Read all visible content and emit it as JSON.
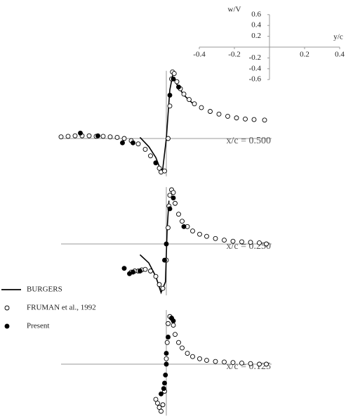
{
  "chart_data": [
    {
      "type": "axes",
      "x_label": "y/c",
      "y_label": "w/V",
      "xlim": [
        -0.4,
        0.4
      ],
      "ylim": [
        -0.6,
        0.6
      ],
      "xticks": [
        -0.4,
        -0.2,
        0.2,
        0.4
      ],
      "yticks": [
        0.6,
        0.4,
        0.2,
        -0.2,
        -0.4,
        -0.6
      ]
    },
    {
      "type": "scatter",
      "title": "x/c = 0.500",
      "xlim": [
        -0.6,
        0.6
      ],
      "ylim": [
        -0.7,
        1.25
      ],
      "series": [
        {
          "name": "BURGERS",
          "style": "line",
          "color": "#000000",
          "x": [
            -0.15,
            -0.1,
            -0.06,
            -0.03,
            -0.02,
            0,
            0.02,
            0.035,
            0.06,
            0.1,
            0.15
          ],
          "values": [
            0.02,
            -0.15,
            -0.35,
            -0.6,
            -0.55,
            0,
            0.9,
            1.15,
            1.0,
            0.8,
            0.65
          ]
        },
        {
          "name": "FRUMAN et al., 1992",
          "style": "open",
          "color": "#000000",
          "x": [
            -0.6,
            -0.56,
            -0.52,
            -0.48,
            -0.44,
            -0.4,
            -0.36,
            -0.32,
            -0.28,
            -0.24,
            -0.2,
            -0.16,
            -0.12,
            -0.09,
            -0.06,
            -0.04,
            -0.03,
            -0.01,
            0.01,
            0.02,
            0.03,
            0.035,
            0.045,
            0.06,
            0.08,
            0.1,
            0.13,
            0.16,
            0.2,
            0.25,
            0.3,
            0.35,
            0.4,
            0.45,
            0.5,
            0.56
          ],
          "values": [
            0.03,
            0.04,
            0.05,
            0.05,
            0.05,
            0.04,
            0.04,
            0.03,
            0.02,
            0.0,
            -0.04,
            -0.1,
            -0.2,
            -0.32,
            -0.45,
            -0.55,
            -0.62,
            -0.6,
            0.0,
            0.6,
            1.1,
            1.23,
            1.2,
            1.05,
            0.92,
            0.82,
            0.72,
            0.64,
            0.57,
            0.5,
            0.45,
            0.41,
            0.38,
            0.36,
            0.35,
            0.34
          ]
        },
        {
          "name": "Present",
          "style": "filled",
          "color": "#000000",
          "x": [
            -0.49,
            -0.39,
            -0.25,
            -0.19,
            -0.06,
            0.02,
            0.04,
            0.07
          ],
          "values": [
            0.1,
            0.05,
            -0.08,
            -0.08,
            -0.45,
            0.8,
            1.1,
            0.95
          ]
        }
      ]
    },
    {
      "type": "scatter",
      "title": "x/c = 0.250",
      "xlim": [
        -0.6,
        0.6
      ],
      "ylim": [
        -0.95,
        1.05
      ],
      "series": [
        {
          "name": "BURGERS",
          "style": "line",
          "color": "#000000",
          "x": [
            -0.15,
            -0.1,
            -0.06,
            -0.03,
            -0.005,
            0.005,
            0.015
          ],
          "values": [
            -0.2,
            -0.35,
            -0.6,
            -0.9,
            -0.7,
            0.3,
            0.8
          ]
        },
        {
          "name": "FRUMAN et al., 1992",
          "style": "open",
          "color": "#000000",
          "x": [
            -0.2,
            -0.18,
            -0.16,
            -0.14,
            -0.12,
            -0.09,
            -0.06,
            -0.04,
            -0.02,
            0.0,
            0.01,
            0.015,
            0.02,
            0.03,
            0.04,
            0.05,
            0.07,
            0.09,
            0.12,
            0.15,
            0.19,
            0.23,
            0.28,
            0.33,
            0.38,
            0.43,
            0.48,
            0.53,
            0.57
          ],
          "values": [
            -0.52,
            -0.5,
            -0.5,
            -0.48,
            -0.47,
            -0.5,
            -0.6,
            -0.75,
            -0.82,
            -0.3,
            0.3,
            0.7,
            0.9,
            1.0,
            0.95,
            0.75,
            0.55,
            0.42,
            0.32,
            0.24,
            0.18,
            0.14,
            0.1,
            0.07,
            0.05,
            0.04,
            0.03,
            0.02,
            0.0
          ]
        },
        {
          "name": "Present",
          "style": "filled",
          "color": "#000000",
          "x": [
            -0.24,
            -0.21,
            -0.19,
            -0.15,
            -0.01,
            0.0,
            0.02,
            0.04,
            0.1
          ],
          "values": [
            -0.45,
            -0.55,
            -0.52,
            -0.5,
            -0.3,
            0.0,
            0.65,
            0.85,
            0.32
          ]
        }
      ]
    },
    {
      "type": "scatter",
      "title": "x/c = 0.125",
      "xlim": [
        -0.6,
        0.6
      ],
      "ylim": [
        -0.95,
        1.0
      ],
      "series": [
        {
          "name": "FRUMAN et al., 1992",
          "style": "open",
          "color": "#000000",
          "x": [
            -0.06,
            -0.05,
            -0.04,
            -0.03,
            -0.02,
            -0.01,
            0.0,
            0.005,
            0.01,
            0.02,
            0.03,
            0.04,
            0.05,
            0.07,
            0.09,
            0.12,
            0.15,
            0.19,
            0.23,
            0.28,
            0.33,
            0.38,
            0.43,
            0.48,
            0.53,
            0.57
          ],
          "values": [
            -0.65,
            -0.72,
            -0.8,
            -0.87,
            -0.75,
            -0.5,
            0.1,
            0.4,
            0.75,
            0.88,
            0.85,
            0.72,
            0.55,
            0.4,
            0.3,
            0.2,
            0.14,
            0.1,
            0.07,
            0.05,
            0.04,
            0.03,
            0.02,
            0.01,
            0.0,
            0.0
          ]
        },
        {
          "name": "Present",
          "style": "filled",
          "color": "#000000",
          "x": [
            -0.03,
            -0.015,
            -0.01,
            -0.005,
            0.0,
            0.0,
            0.01,
            0.03,
            0.04
          ],
          "values": [
            -0.55,
            -0.45,
            -0.35,
            -0.2,
            0.0,
            0.2,
            0.5,
            0.85,
            0.8
          ]
        }
      ]
    }
  ]
}
